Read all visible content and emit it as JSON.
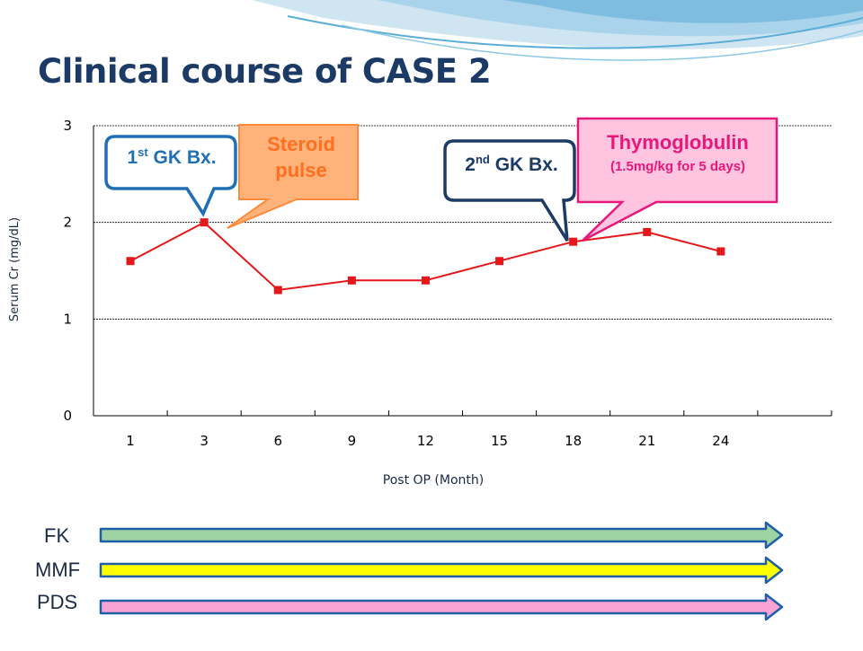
{
  "slide": {
    "title": "Clinical course of CASE 2"
  },
  "chart_data": {
    "type": "line",
    "title": "",
    "xlabel": "Post OP (Month)",
    "ylabel": "Serum Cr (mg/dL)",
    "categories": [
      "1",
      "3",
      "6",
      "9",
      "12",
      "15",
      "18",
      "21",
      "24"
    ],
    "series": [
      {
        "values": [
          1.6,
          2.0,
          1.3,
          1.4,
          1.4,
          1.6,
          1.8,
          1.9,
          1.7
        ]
      }
    ],
    "ylim": [
      0,
      3
    ],
    "yticks": [
      0,
      1,
      2,
      3
    ],
    "grid": true,
    "legend": "none",
    "line_color": "#e4171b"
  },
  "callouts": {
    "gk1": {
      "text": "1",
      "sup": "st",
      "rest": " GK Bx.",
      "color": "#1f6fb5"
    },
    "steroid": {
      "line1": "Steroid",
      "line2": "pulse",
      "color": "#ff6f1f",
      "fill": "#ffb27a"
    },
    "gk2": {
      "text": "2",
      "sup": "nd",
      "rest": " GK Bx.",
      "color": "#1b3a66"
    },
    "thymo": {
      "line1": "Thymoglobulin",
      "line2": "(1.5mg/kg for 5 days)",
      "color": "#e4197b",
      "fill": "#ffc4df"
    }
  },
  "drugs": [
    {
      "label": "FK",
      "color": "#9ed4a3"
    },
    {
      "label": "MMF",
      "color": "#ffff00"
    },
    {
      "label": "PDS",
      "color": "#f9a3d4"
    }
  ]
}
